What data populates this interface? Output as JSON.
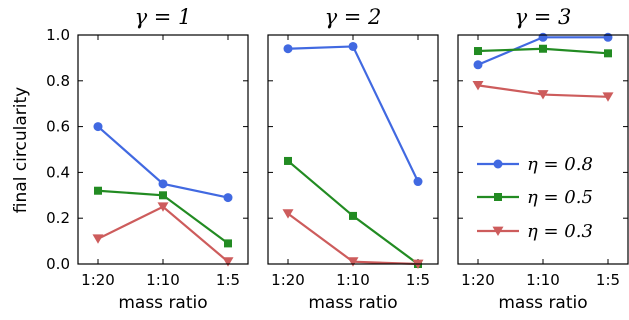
{
  "colors": {
    "eta_0.8": "#4169e1",
    "eta_0.5": "#228b22",
    "eta_0.3": "#cd5c5c"
  },
  "chart_data": [
    {
      "type": "line",
      "title": "γ = 1",
      "xlabel": "mass ratio",
      "ylabel": "final circularity",
      "categories": [
        "1:20",
        "1:10",
        "1:5"
      ],
      "ylim": [
        0,
        1
      ],
      "yticks": [
        "0.0",
        "0.2",
        "0.4",
        "0.6",
        "0.8",
        "1.0"
      ],
      "series": [
        {
          "name": "η = 0.8",
          "values": [
            0.6,
            0.35,
            0.29
          ]
        },
        {
          "name": "η = 0.5",
          "values": [
            0.32,
            0.3,
            0.09
          ]
        },
        {
          "name": "η = 0.3",
          "values": [
            0.11,
            0.25,
            0.01
          ]
        }
      ]
    },
    {
      "type": "line",
      "title": "γ = 2",
      "xlabel": "mass ratio",
      "categories": [
        "1:20",
        "1:10",
        "1:5"
      ],
      "ylim": [
        0,
        1
      ],
      "series": [
        {
          "name": "η = 0.8",
          "values": [
            0.94,
            0.95,
            0.36
          ]
        },
        {
          "name": "η = 0.5",
          "values": [
            0.45,
            0.21,
            0.0
          ]
        },
        {
          "name": "η = 0.3",
          "values": [
            0.22,
            0.01,
            0.0
          ]
        }
      ]
    },
    {
      "type": "line",
      "title": "γ = 3",
      "xlabel": "mass ratio",
      "categories": [
        "1:20",
        "1:10",
        "1:5"
      ],
      "ylim": [
        0,
        1
      ],
      "legend": {
        "placement": "lower-right",
        "entries": [
          "η = 0.8",
          "η = 0.5",
          "η = 0.3"
        ]
      },
      "series": [
        {
          "name": "η = 0.8",
          "values": [
            0.87,
            0.99,
            0.99
          ]
        },
        {
          "name": "η = 0.5",
          "values": [
            0.93,
            0.94,
            0.92
          ]
        },
        {
          "name": "η = 0.3",
          "values": [
            0.78,
            0.74,
            0.73
          ]
        }
      ]
    }
  ]
}
